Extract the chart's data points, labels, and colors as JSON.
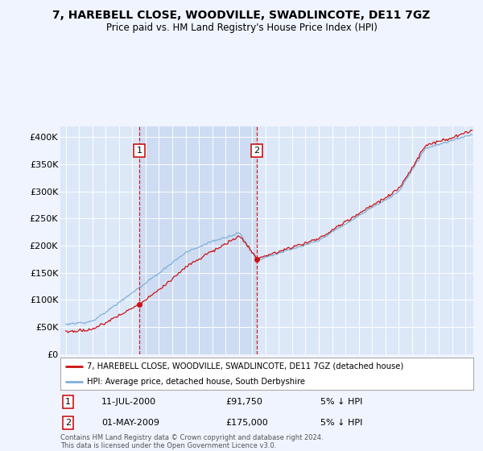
{
  "title": "7, HAREBELL CLOSE, WOODVILLE, SWADLINCOTE, DE11 7GZ",
  "subtitle": "Price paid vs. HM Land Registry's House Price Index (HPI)",
  "background_color": "#f0f4ff",
  "plot_bg_color": "#dce8f8",
  "grid_color": "#c8d8e8",
  "hpi_color": "#7fb0d8",
  "price_color": "#cc1111",
  "shade_color": "#c8d8f0",
  "ylim": [
    0,
    420000
  ],
  "yticks": [
    0,
    50000,
    100000,
    150000,
    200000,
    250000,
    300000,
    350000,
    400000
  ],
  "ytick_labels": [
    "£0",
    "£50K",
    "£100K",
    "£150K",
    "£200K",
    "£250K",
    "£300K",
    "£350K",
    "£400K"
  ],
  "sale1_date": 2000.53,
  "sale1_price": 91750,
  "sale1_label": "1",
  "sale2_date": 2009.33,
  "sale2_price": 175000,
  "sale2_label": "2",
  "legend_line1": "7, HAREBELL CLOSE, WOODVILLE, SWADLINCOTE, DE11 7GZ (detached house)",
  "legend_line2": "HPI: Average price, detached house, South Derbyshire",
  "note1_label": "1",
  "note1_date": "11-JUL-2000",
  "note1_price": "£91,750",
  "note1_rel": "5% ↓ HPI",
  "note2_label": "2",
  "note2_date": "01-MAY-2009",
  "note2_price": "£175,000",
  "note2_rel": "5% ↓ HPI",
  "footer": "Contains HM Land Registry data © Crown copyright and database right 2024.\nThis data is licensed under the Open Government Licence v3.0."
}
